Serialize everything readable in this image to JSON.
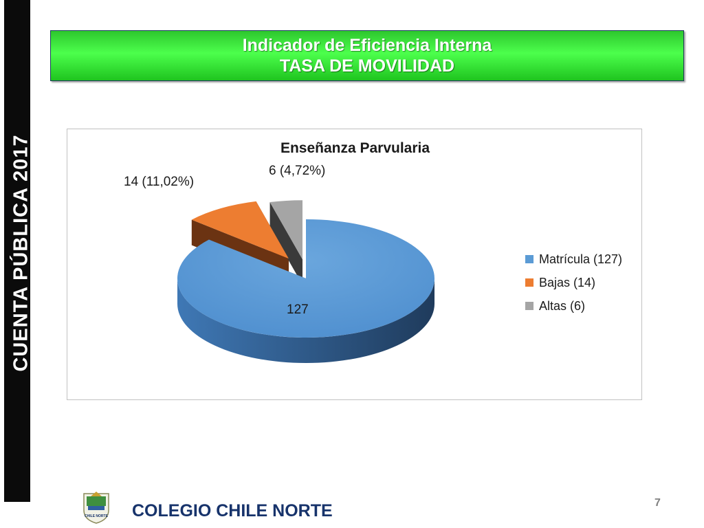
{
  "side_banner": {
    "text": "CUENTA  PÚBLICA  2017"
  },
  "header": {
    "line1": "Indicador de Eficiencia Interna",
    "line2": "TASA DE MOVILIDAD"
  },
  "chart_data": {
    "type": "pie",
    "title": "Enseñanza Parvularia",
    "slices": [
      {
        "name": "Matrícula (127)",
        "value": 127,
        "label": "127",
        "color": "#5b9bd5"
      },
      {
        "name": "Bajas (14)",
        "value": 14,
        "label": "14 (11,02%)",
        "color": "#ed7d31"
      },
      {
        "name": "Altas (6)",
        "value": 6,
        "label": "6 (4,72%)",
        "color": "#a5a5a5"
      }
    ],
    "legend": {
      "position": "right"
    }
  },
  "footer": {
    "organization": "COLEGIO CHILE NORTE",
    "logo_text": "CHILE NORTE",
    "page_number": "7"
  },
  "colors": {
    "banner_green": "#4cff4c",
    "side_bar": "#0b0b0b",
    "footer_text": "#17336b"
  }
}
